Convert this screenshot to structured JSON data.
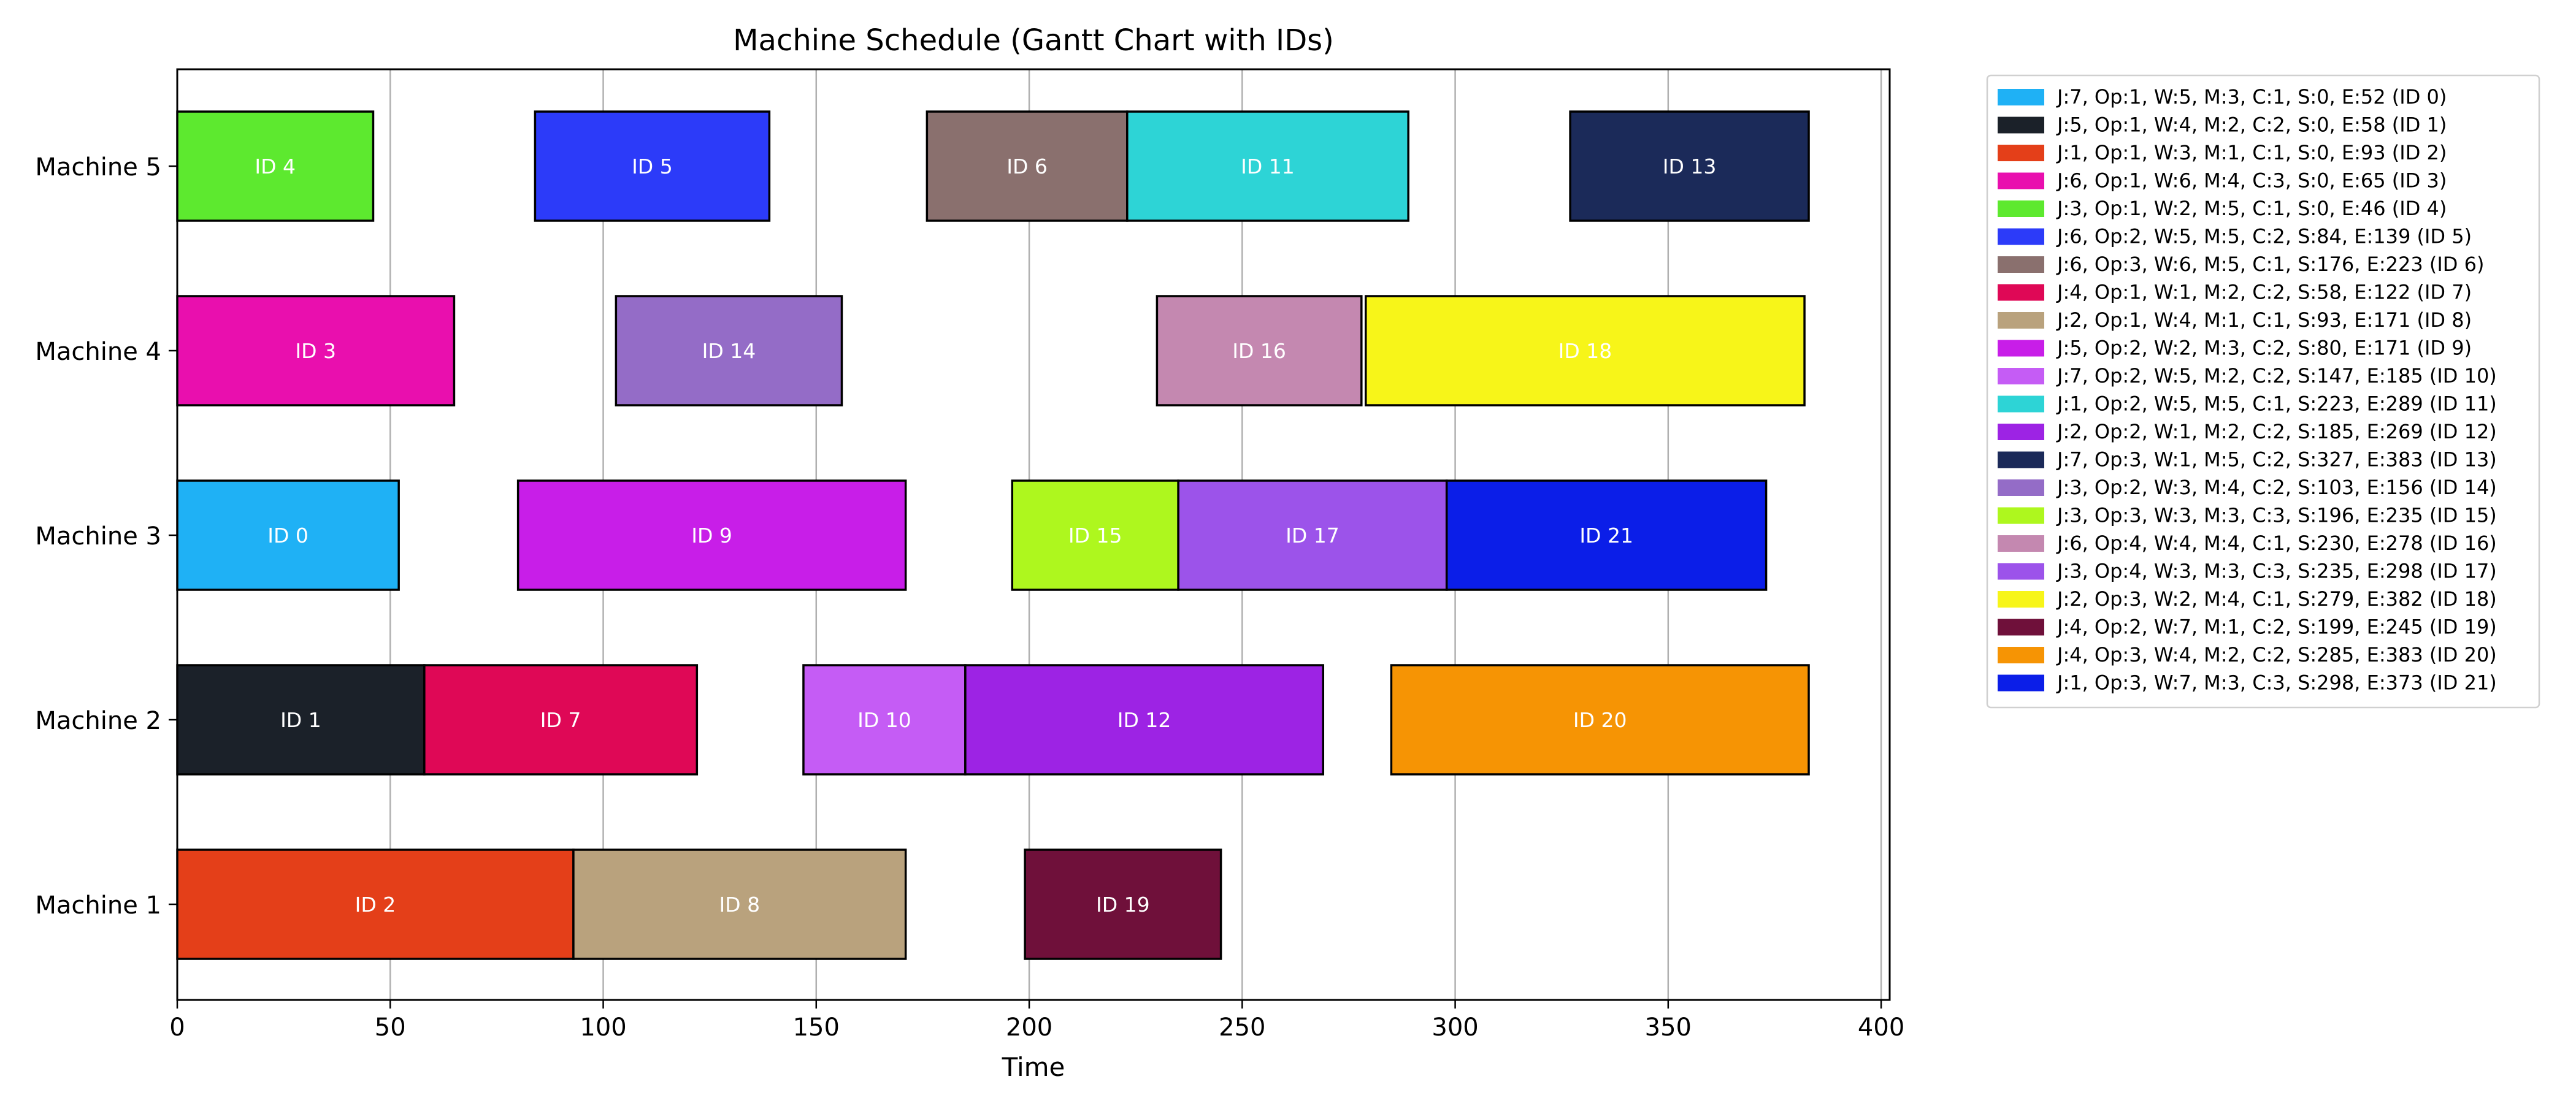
{
  "chart_data": {
    "type": "bar",
    "orientation": "horizontal-gantt",
    "title": "Machine Schedule (Gantt Chart with IDs)",
    "xlabel": "Time",
    "ylabel": "",
    "xlim": [
      0,
      402
    ],
    "x_ticks": [
      0,
      50,
      100,
      150,
      200,
      250,
      300,
      350,
      400
    ],
    "grid": "vertical",
    "legend_position": "outside-right",
    "machines": [
      "Machine 1",
      "Machine 2",
      "Machine 3",
      "Machine 4",
      "Machine 5"
    ],
    "tasks": [
      {
        "id": 0,
        "label": "ID 0",
        "machine": 3,
        "start": 0,
        "end": 52,
        "color": "#1fb1f5",
        "legend": "J:7, Op:1, W:5, M:3, C:1, S:0, E:52 (ID 0)"
      },
      {
        "id": 1,
        "label": "ID 1",
        "machine": 2,
        "start": 0,
        "end": 58,
        "color": "#1b2129",
        "legend": "J:5, Op:1, W:4, M:2, C:2, S:0, E:58 (ID 1)"
      },
      {
        "id": 2,
        "label": "ID 2",
        "machine": 1,
        "start": 0,
        "end": 93,
        "color": "#e43f19",
        "legend": "J:1, Op:1, W:3, M:1, C:1, S:0, E:93 (ID 2)"
      },
      {
        "id": 3,
        "label": "ID 3",
        "machine": 4,
        "start": 0,
        "end": 65,
        "color": "#e90fae",
        "legend": "J:6, Op:1, W:6, M:4, C:3, S:0, E:65 (ID 3)"
      },
      {
        "id": 4,
        "label": "ID 4",
        "machine": 5,
        "start": 0,
        "end": 46,
        "color": "#5de92f",
        "legend": "J:3, Op:1, W:2, M:5, C:1, S:0, E:46 (ID 4)"
      },
      {
        "id": 5,
        "label": "ID 5",
        "machine": 5,
        "start": 84,
        "end": 139,
        "color": "#2c3bf9",
        "legend": "J:6, Op:2, W:5, M:5, C:2, S:84, E:139 (ID 5)"
      },
      {
        "id": 6,
        "label": "ID 6",
        "machine": 5,
        "start": 176,
        "end": 223,
        "color": "#8a706e",
        "legend": "J:6, Op:3, W:6, M:5, C:1, S:176, E:223 (ID 6)"
      },
      {
        "id": 7,
        "label": "ID 7",
        "machine": 2,
        "start": 58,
        "end": 122,
        "color": "#df0856",
        "legend": "J:4, Op:1, W:1, M:2, C:2, S:58, E:122 (ID 7)"
      },
      {
        "id": 8,
        "label": "ID 8",
        "machine": 1,
        "start": 93,
        "end": 171,
        "color": "#b9a27d",
        "legend": "J:2, Op:1, W:4, M:1, C:1, S:93, E:171 (ID 8)"
      },
      {
        "id": 9,
        "label": "ID 9",
        "machine": 3,
        "start": 80,
        "end": 171,
        "color": "#c81ee8",
        "legend": "J:5, Op:2, W:2, M:3, C:2, S:80, E:171 (ID 9)"
      },
      {
        "id": 10,
        "label": "ID 10",
        "machine": 2,
        "start": 147,
        "end": 185,
        "color": "#c55cf5",
        "legend": "J:7, Op:2, W:5, M:2, C:2, S:147, E:185 (ID 10)"
      },
      {
        "id": 11,
        "label": "ID 11",
        "machine": 5,
        "start": 223,
        "end": 289,
        "color": "#2dd4d6",
        "legend": "J:1, Op:2, W:5, M:5, C:1, S:223, E:289 (ID 11)"
      },
      {
        "id": 12,
        "label": "ID 12",
        "machine": 2,
        "start": 185,
        "end": 269,
        "color": "#9d23e4",
        "legend": "J:2, Op:2, W:1, M:2, C:2, S:185, E:269 (ID 12)"
      },
      {
        "id": 13,
        "label": "ID 13",
        "machine": 5,
        "start": 327,
        "end": 383,
        "color": "#1b2a59",
        "legend": "J:7, Op:3, W:1, M:5, C:2, S:327, E:383 (ID 13)"
      },
      {
        "id": 14,
        "label": "ID 14",
        "machine": 4,
        "start": 103,
        "end": 156,
        "color": "#946cc7",
        "legend": "J:3, Op:2, W:3, M:4, C:2, S:103, E:156 (ID 14)"
      },
      {
        "id": 15,
        "label": "ID 15",
        "machine": 3,
        "start": 196,
        "end": 235,
        "color": "#aef71e",
        "legend": "J:3, Op:3, W:3, M:3, C:3, S:196, E:235 (ID 15)"
      },
      {
        "id": 16,
        "label": "ID 16",
        "machine": 4,
        "start": 230,
        "end": 278,
        "color": "#c488b0",
        "legend": "J:6, Op:4, W:4, M:4, C:1, S:230, E:278 (ID 16)"
      },
      {
        "id": 17,
        "label": "ID 17",
        "machine": 3,
        "start": 235,
        "end": 298,
        "color": "#9c53ea",
        "legend": "J:3, Op:4, W:3, M:3, C:3, S:235, E:298 (ID 17)"
      },
      {
        "id": 18,
        "label": "ID 18",
        "machine": 4,
        "start": 279,
        "end": 382,
        "color": "#f7f519",
        "legend": "J:2, Op:3, W:2, M:4, C:1, S:279, E:382 (ID 18)"
      },
      {
        "id": 19,
        "label": "ID 19",
        "machine": 1,
        "start": 199,
        "end": 245,
        "color": "#6f103a",
        "legend": "J:4, Op:2, W:7, M:1, C:2, S:199, E:245 (ID 19)"
      },
      {
        "id": 20,
        "label": "ID 20",
        "machine": 2,
        "start": 285,
        "end": 383,
        "color": "#f69404",
        "legend": "J:4, Op:3, W:4, M:2, C:2, S:285, E:383 (ID 20)"
      },
      {
        "id": 21,
        "label": "ID 21",
        "machine": 3,
        "start": 298,
        "end": 373,
        "color": "#0b1ee8",
        "legend": "J:1, Op:3, W:7, M:3, C:3, S:298, E:373 (ID 21)"
      }
    ]
  }
}
